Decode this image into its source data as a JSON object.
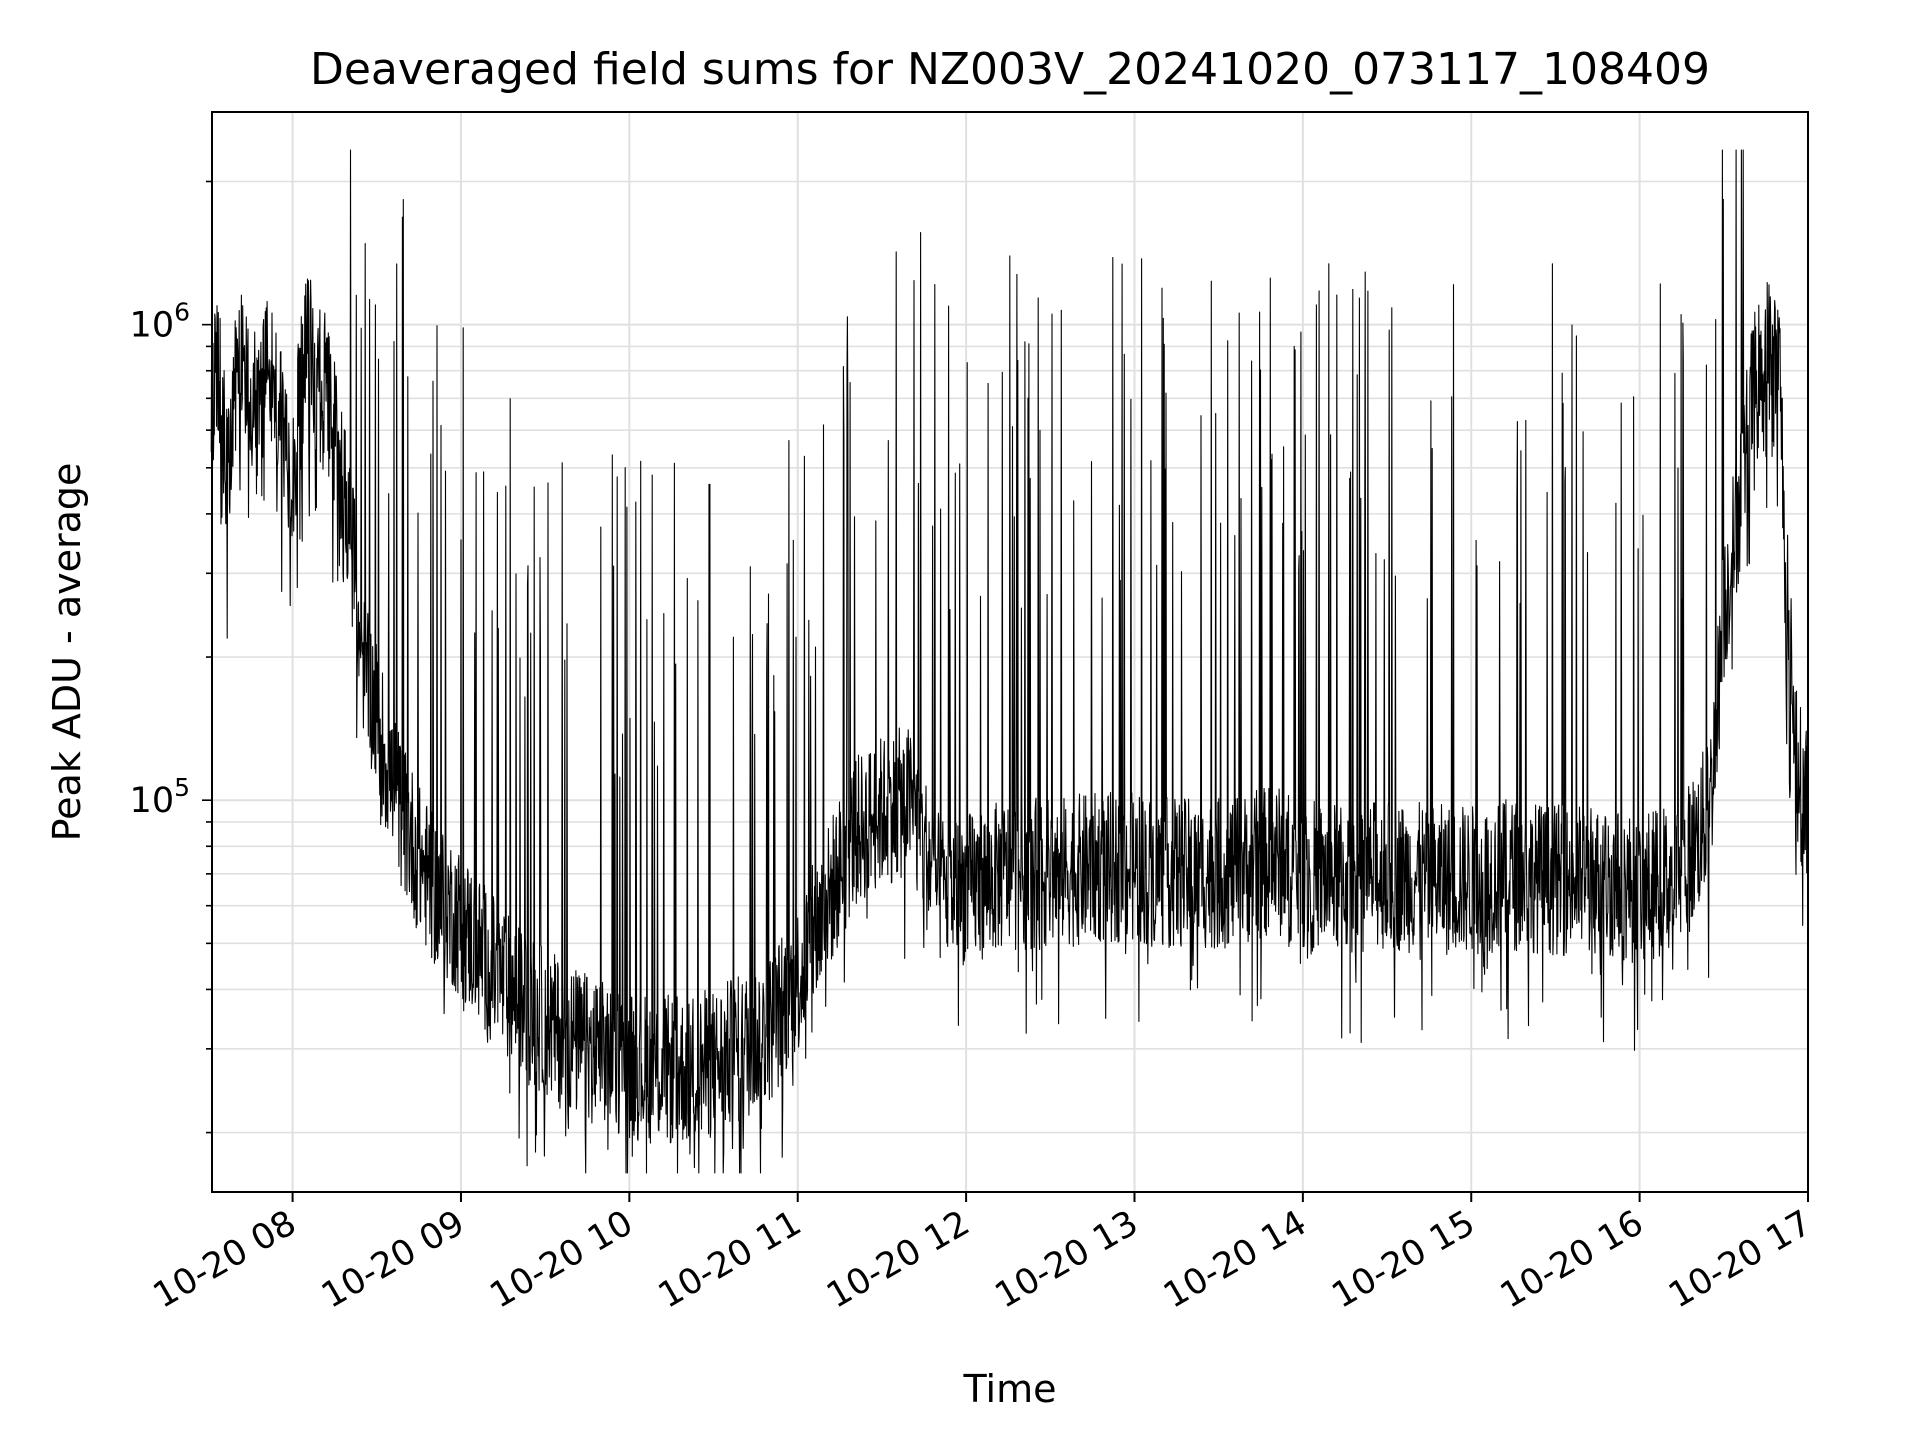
{
  "chart_data": {
    "type": "line",
    "title": "Deaveraged field sums for NZ003V_20241020_073117_108409",
    "xlabel": "Time",
    "ylabel": "Peak ADU - average",
    "yscale": "log",
    "grid": true,
    "line_color": "#000000",
    "xlim": [
      "2024-10-20 07:31:17",
      "2024-10-20 17:00:00"
    ],
    "ylim": [
      15000,
      2800000
    ],
    "x_ticks": [
      "10-20 08",
      "10-20 09",
      "10-20 10",
      "10-20 11",
      "10-20 12",
      "10-20 13",
      "10-20 14",
      "10-20 15",
      "10-20 16",
      "10-20 17"
    ],
    "y_ticks": [
      {
        "base": "10",
        "exp": "5",
        "value": 100000
      },
      {
        "base": "10",
        "exp": "6",
        "value": 1000000
      }
    ],
    "series": [
      {
        "x": [
          "2024-10-20 07:31",
          "2024-10-20 07:34",
          "2024-10-20 07:37",
          "2024-10-20 07:40",
          "2024-10-20 07:42",
          "2024-10-20 07:45",
          "2024-10-20 07:48",
          "2024-10-20 07:51",
          "2024-10-20 07:55",
          "2024-10-20 08:00",
          "2024-10-20 08:05",
          "2024-10-20 08:10",
          "2024-10-20 08:15",
          "2024-10-20 08:20",
          "2024-10-20 08:25",
          "2024-10-20 08:30",
          "2024-10-20 08:35",
          "2024-10-20 08:40",
          "2024-10-20 08:45",
          "2024-10-20 08:50",
          "2024-10-20 08:55",
          "2024-10-20 09:00",
          "2024-10-20 09:10",
          "2024-10-20 09:20",
          "2024-10-20 09:30",
          "2024-10-20 09:40",
          "2024-10-20 09:50",
          "2024-10-20 10:00",
          "2024-10-20 10:10",
          "2024-10-20 10:20",
          "2024-10-20 10:30",
          "2024-10-20 10:40",
          "2024-10-20 10:50",
          "2024-10-20 11:00",
          "2024-10-20 11:10",
          "2024-10-20 11:20",
          "2024-10-20 11:30",
          "2024-10-20 11:40",
          "2024-10-20 11:45",
          "2024-10-20 11:50",
          "2024-10-20 12:00",
          "2024-10-20 12:15",
          "2024-10-20 12:30",
          "2024-10-20 12:45",
          "2024-10-20 13:00",
          "2024-10-20 13:15",
          "2024-10-20 13:30",
          "2024-10-20 13:40",
          "2024-10-20 13:50",
          "2024-10-20 14:00",
          "2024-10-20 14:15",
          "2024-10-20 14:30",
          "2024-10-20 14:45",
          "2024-10-20 15:00",
          "2024-10-20 15:15",
          "2024-10-20 15:30",
          "2024-10-20 15:45",
          "2024-10-20 16:00",
          "2024-10-20 16:15",
          "2024-10-20 16:25",
          "2024-10-20 16:30",
          "2024-10-20 16:35",
          "2024-10-20 16:40",
          "2024-10-20 16:45",
          "2024-10-20 16:50",
          "2024-10-20 16:52",
          "2024-10-20 16:55",
          "2024-10-20 16:58",
          "2024-10-20 17:00"
        ],
        "values": [
          700000,
          800000,
          450000,
          1000000,
          900000,
          700000,
          650000,
          900000,
          650000,
          500000,
          900000,
          800000,
          600000,
          400000,
          200000,
          150000,
          110000,
          90000,
          75000,
          65000,
          60000,
          55000,
          45000,
          38000,
          34000,
          31000,
          29000,
          28000,
          27000,
          27000,
          28000,
          30000,
          33000,
          42000,
          60000,
          85000,
          95000,
          100000,
          80000,
          65000,
          65000,
          70000,
          70000,
          72000,
          72000,
          70000,
          70000,
          72000,
          75000,
          70000,
          68000,
          70000,
          68000,
          68000,
          70000,
          68000,
          68000,
          65000,
          70000,
          95000,
          250000,
          400000,
          700000,
          900000,
          800000,
          300000,
          150000,
          100000,
          100000
        ]
      }
    ]
  }
}
